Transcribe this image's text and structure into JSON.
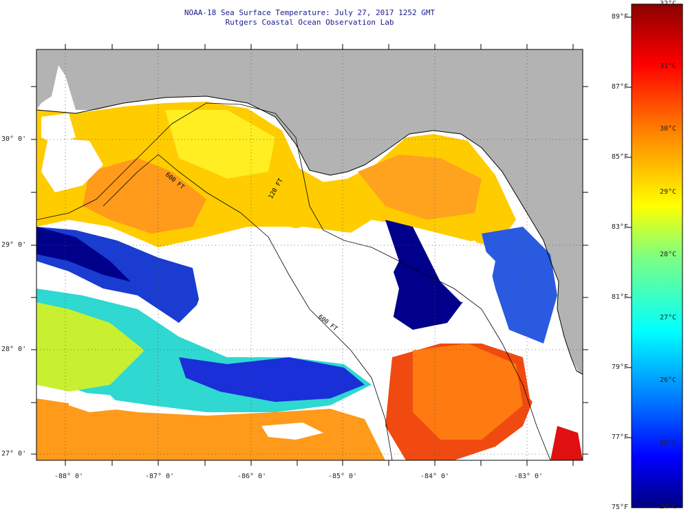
{
  "header": {
    "title": "NOAA-18 Sea Surface Temperature:  July 27, 2017 1252 GMT",
    "subtitle": "Rutgers Coastal Ocean Observation Lab"
  },
  "axes": {
    "latitude_labels": [
      "30° 0'",
      "29° 0'",
      "28° 0'",
      "27° 0'"
    ],
    "longitude_labels": [
      "-88° 0'",
      "-87° 0'",
      "-86° 0'",
      "-85° 0'",
      "-84° 0'",
      "-83° 0'"
    ]
  },
  "isobaths": [
    "120 FT",
    "600 FT",
    "600 FT"
  ],
  "colorbar": {
    "fahrenheit_labels": [
      "89°F",
      "87°F",
      "85°F",
      "83°F",
      "81°F",
      "79°F",
      "77°F",
      "75°F"
    ],
    "celsius_labels": [
      "32°C",
      "31°C",
      "30°C",
      "29°C",
      "28°C",
      "27°C",
      "26°C",
      "25°C",
      "24°C"
    ],
    "colors": [
      "#8b0000",
      "#ff0000",
      "#ff7f00",
      "#ffff00",
      "#7fff7f",
      "#00ffff",
      "#007fff",
      "#0000ff",
      "#00007f"
    ]
  },
  "colors": {
    "land": "#b3b3b3",
    "cloud_mask": "#ffffff",
    "title_text": "#1a1a8c"
  }
}
